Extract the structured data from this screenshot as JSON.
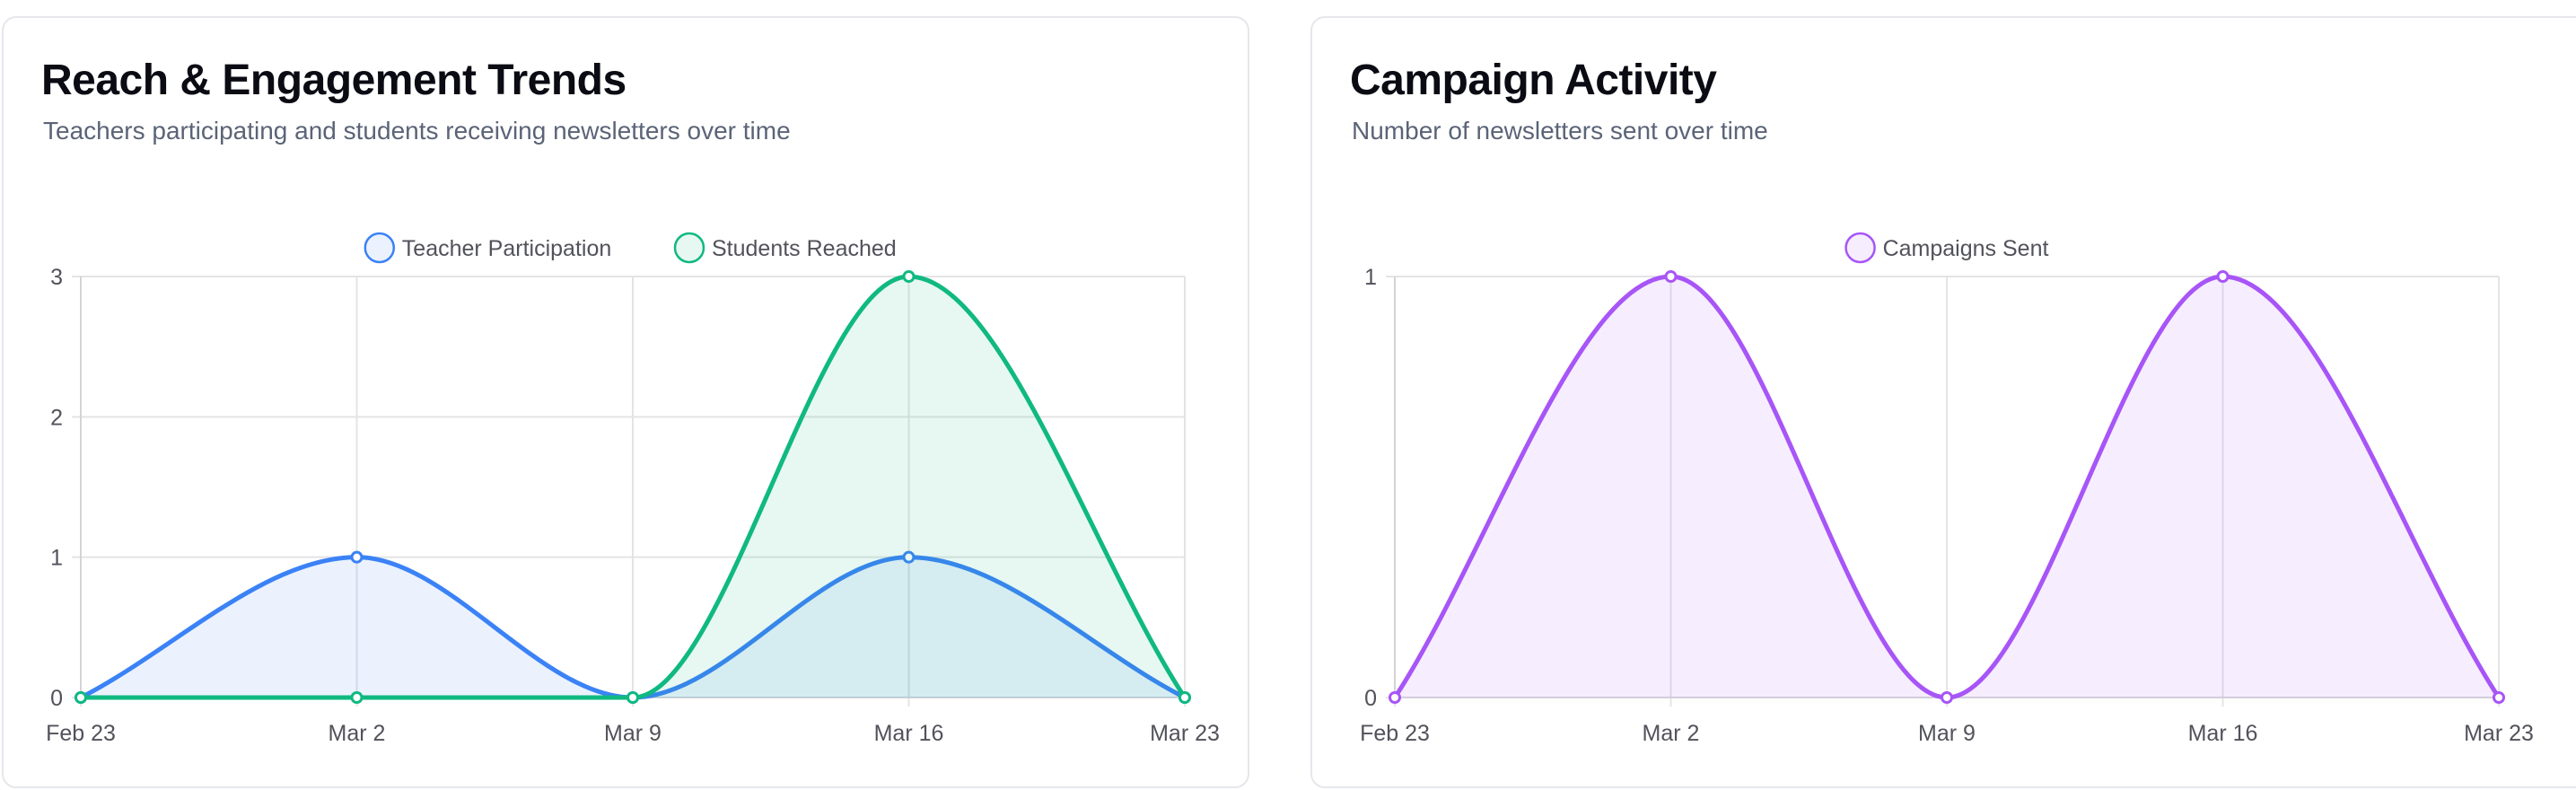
{
  "cards": [
    {
      "title": "Reach & Engagement Trends",
      "subtitle": "Teachers participating and students receiving newsletters over time"
    },
    {
      "title": "Campaign Activity",
      "subtitle": "Number of newsletters sent over time"
    }
  ],
  "chart_data": [
    {
      "type": "area",
      "title": "Reach & Engagement Trends",
      "subtitle": "Teachers participating and students receiving newsletters over time",
      "categories": [
        "Feb 23",
        "Mar 2",
        "Mar 9",
        "Mar 16",
        "Mar 23"
      ],
      "series": [
        {
          "name": "Teacher Participation",
          "values": [
            0,
            1,
            0,
            1,
            0
          ],
          "color": "#3b82f6",
          "fill": "#3b82f6"
        },
        {
          "name": "Students Reached",
          "values": [
            0,
            0,
            0,
            3,
            0
          ],
          "color": "#10b981",
          "fill": "#10b981"
        }
      ],
      "ylim": [
        0,
        3
      ],
      "yticks": [
        0,
        1,
        2,
        3
      ],
      "xlabel": "",
      "ylabel": "",
      "grid": true,
      "legend": "top-center",
      "curve": "smooth"
    },
    {
      "type": "area",
      "title": "Campaign Activity",
      "subtitle": "Number of newsletters sent over time",
      "categories": [
        "Feb 23",
        "Mar 2",
        "Mar 9",
        "Mar 16",
        "Mar 23"
      ],
      "series": [
        {
          "name": "Campaigns Sent",
          "values": [
            0,
            1,
            0,
            1,
            0
          ],
          "color": "#a855f7",
          "fill": "#a855f7"
        }
      ],
      "ylim": [
        0,
        1
      ],
      "yticks": [
        0,
        1
      ],
      "xlabel": "",
      "ylabel": "",
      "grid": true,
      "legend": "top-center",
      "curve": "smooth"
    }
  ]
}
